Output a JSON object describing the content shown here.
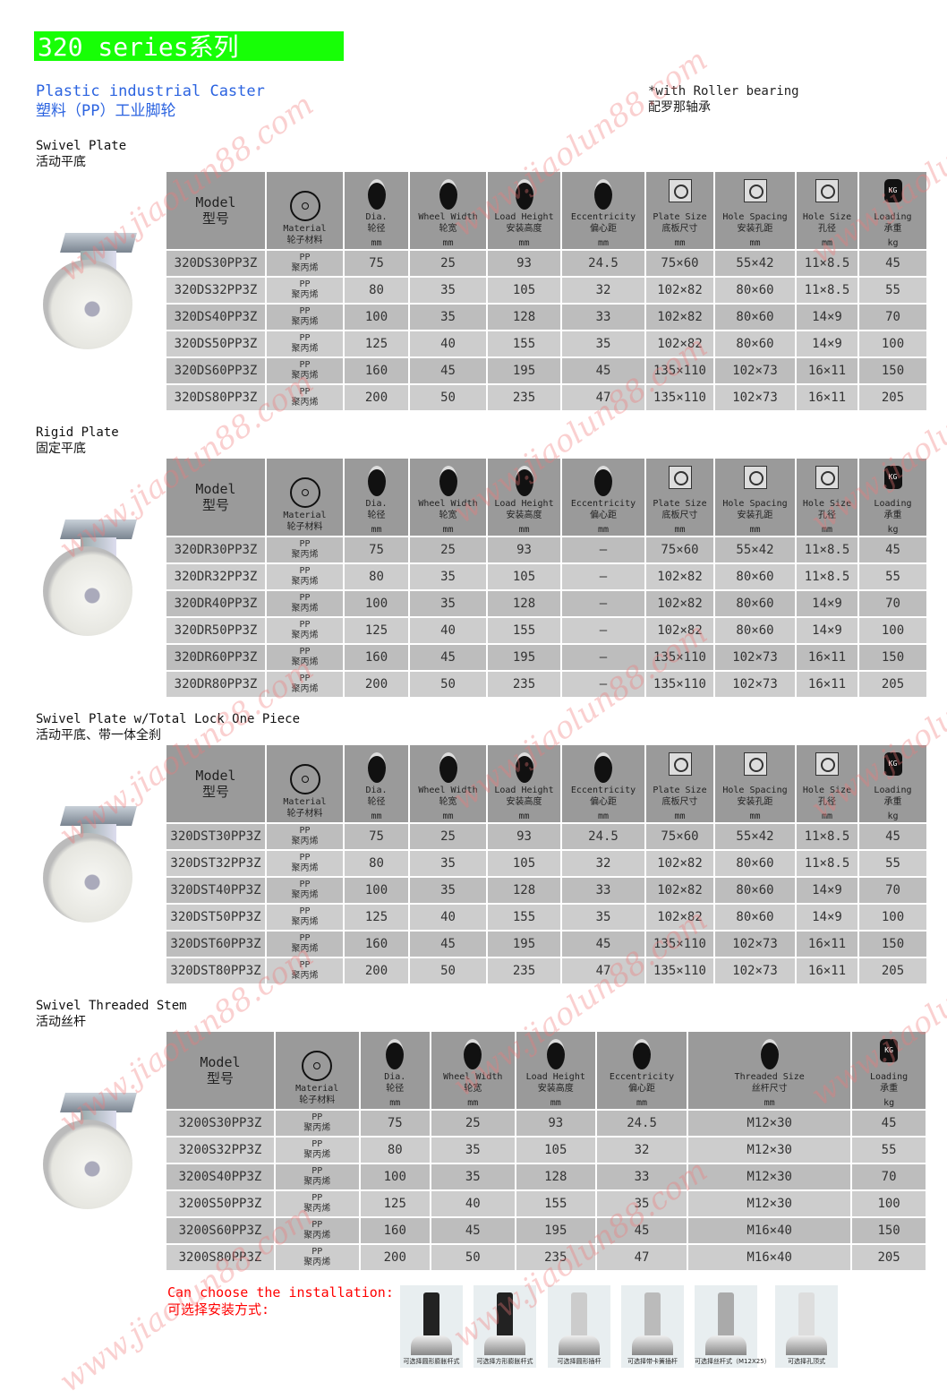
{
  "header": {
    "series": "320 series系列",
    "subtitle_en": "Plastic industrial Caster",
    "subtitle_cn": "塑料（PP）工业脚轮",
    "note_en": "*with Roller bearing",
    "note_cn": "配罗那轴承"
  },
  "columns": {
    "model": [
      "Model",
      "型号"
    ],
    "material": [
      "Material",
      "轮子材料",
      ""
    ],
    "dia": [
      "Dia.",
      "轮径",
      "mm"
    ],
    "width": [
      "Wheel Width",
      "轮宽",
      "mm"
    ],
    "height": [
      "Load Height",
      "安装高度",
      "mm"
    ],
    "ecc": [
      "Eccentricity",
      "偏心距",
      "mm"
    ],
    "plate": [
      "Plate Size",
      "底板尺寸",
      "mm"
    ],
    "spacing": [
      "Hole Spacing",
      "安装孔距",
      "mm"
    ],
    "hole": [
      "Hole Size",
      "孔径",
      "mm"
    ],
    "thread": [
      "Threaded Size",
      "丝杆尺寸",
      "mm"
    ],
    "load": [
      "Loading",
      "承重",
      "kg"
    ]
  },
  "material": [
    "PP",
    "聚丙烯"
  ],
  "sections": [
    {
      "title_en": "Swivel Plate",
      "title_cn": "活动平底",
      "cols": [
        "model",
        "material",
        "dia",
        "width",
        "height",
        "ecc",
        "plate",
        "spacing",
        "hole",
        "load"
      ],
      "rows": [
        [
          "320DS30PP3Z",
          "75",
          "25",
          "93",
          "24.5",
          "75×60",
          "55×42",
          "11×8.5",
          "45"
        ],
        [
          "320DS32PP3Z",
          "80",
          "35",
          "105",
          "32",
          "102×82",
          "80×60",
          "11×8.5",
          "55"
        ],
        [
          "320DS40PP3Z",
          "100",
          "35",
          "128",
          "33",
          "102×82",
          "80×60",
          "14×9",
          "70"
        ],
        [
          "320DS50PP3Z",
          "125",
          "40",
          "155",
          "35",
          "102×82",
          "80×60",
          "14×9",
          "100"
        ],
        [
          "320DS60PP3Z",
          "160",
          "45",
          "195",
          "45",
          "135×110",
          "102×73",
          "16×11",
          "150"
        ],
        [
          "320DS80PP3Z",
          "200",
          "50",
          "235",
          "47",
          "135×110",
          "102×73",
          "16×11",
          "205"
        ]
      ]
    },
    {
      "title_en": "Rigid Plate",
      "title_cn": "固定平底",
      "cols": [
        "model",
        "material",
        "dia",
        "width",
        "height",
        "ecc",
        "plate",
        "spacing",
        "hole",
        "load"
      ],
      "rows": [
        [
          "320DR30PP3Z",
          "75",
          "25",
          "93",
          "—",
          "75×60",
          "55×42",
          "11×8.5",
          "45"
        ],
        [
          "320DR32PP3Z",
          "80",
          "35",
          "105",
          "—",
          "102×82",
          "80×60",
          "11×8.5",
          "55"
        ],
        [
          "320DR40PP3Z",
          "100",
          "35",
          "128",
          "—",
          "102×82",
          "80×60",
          "14×9",
          "70"
        ],
        [
          "320DR50PP3Z",
          "125",
          "40",
          "155",
          "—",
          "102×82",
          "80×60",
          "14×9",
          "100"
        ],
        [
          "320DR60PP3Z",
          "160",
          "45",
          "195",
          "—",
          "135×110",
          "102×73",
          "16×11",
          "150"
        ],
        [
          "320DR80PP3Z",
          "200",
          "50",
          "235",
          "—",
          "135×110",
          "102×73",
          "16×11",
          "205"
        ]
      ]
    },
    {
      "title_en": "Swivel Plate w/Total Lock One Piece",
      "title_cn": "活动平底、带一体全刹",
      "cols": [
        "model",
        "material",
        "dia",
        "width",
        "height",
        "ecc",
        "plate",
        "spacing",
        "hole",
        "load"
      ],
      "rows": [
        [
          "320DST30PP3Z",
          "75",
          "25",
          "93",
          "24.5",
          "75×60",
          "55×42",
          "11×8.5",
          "45"
        ],
        [
          "320DST32PP3Z",
          "80",
          "35",
          "105",
          "32",
          "102×82",
          "80×60",
          "11×8.5",
          "55"
        ],
        [
          "320DST40PP3Z",
          "100",
          "35",
          "128",
          "33",
          "102×82",
          "80×60",
          "14×9",
          "70"
        ],
        [
          "320DST50PP3Z",
          "125",
          "40",
          "155",
          "35",
          "102×82",
          "80×60",
          "14×9",
          "100"
        ],
        [
          "320DST60PP3Z",
          "160",
          "45",
          "195",
          "45",
          "135×110",
          "102×73",
          "16×11",
          "150"
        ],
        [
          "320DST80PP3Z",
          "200",
          "50",
          "235",
          "47",
          "135×110",
          "102×73",
          "16×11",
          "205"
        ]
      ]
    },
    {
      "title_en": "Swivel Threaded Stem",
      "title_cn": "活动丝杆",
      "cols": [
        "model",
        "material",
        "dia",
        "width",
        "height",
        "ecc",
        "thread",
        "load"
      ],
      "rows": [
        [
          "3200S30PP3Z",
          "75",
          "25",
          "93",
          "24.5",
          "M12×30",
          "45"
        ],
        [
          "3200S32PP3Z",
          "80",
          "35",
          "105",
          "32",
          "M12×30",
          "55"
        ],
        [
          "3200S40PP3Z",
          "100",
          "35",
          "128",
          "33",
          "M12×30",
          "70"
        ],
        [
          "3200S50PP3Z",
          "125",
          "40",
          "155",
          "35",
          "M12×30",
          "100"
        ],
        [
          "3200S60PP3Z",
          "160",
          "45",
          "195",
          "45",
          "M16×40",
          "150"
        ],
        [
          "3200S80PP3Z",
          "200",
          "50",
          "235",
          "47",
          "M16×40",
          "205"
        ]
      ]
    }
  ],
  "installation": {
    "label_en": "Can choose the installation:",
    "label_cn": "可选择安装方式:",
    "options": [
      "可选择圆形膨胀杆式",
      "可选择方形膨胀杆式",
      "可选择圆形插杆",
      "可选择带卡簧插杆",
      "可选择丝杆式（M12X25）",
      "可选择孔顶式"
    ]
  },
  "watermark": "www.jiaolun88.com"
}
